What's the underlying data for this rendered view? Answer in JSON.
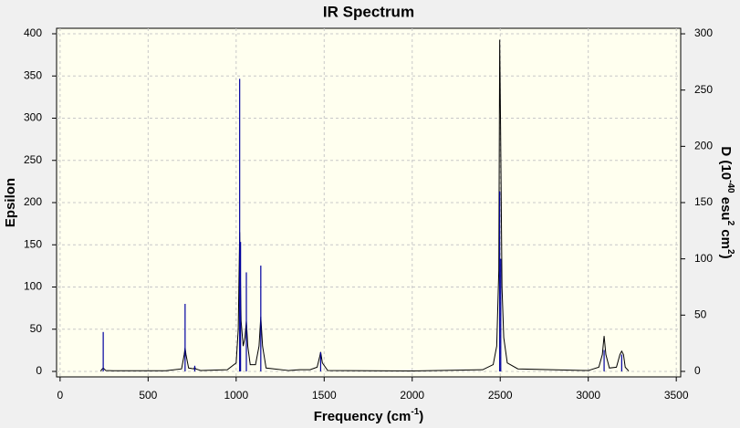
{
  "chart_data": {
    "type": "line",
    "title": "IR Spectrum",
    "xlabel": [
      "Frequency (cm",
      "-1",
      ")"
    ],
    "ylabel": "Epsilon",
    "y2label": [
      "D (10",
      "-40",
      " esu",
      "2",
      " cm",
      "2",
      ")"
    ],
    "xlim": [
      -20,
      3525
    ],
    "xticks": [
      0,
      500,
      1000,
      1500,
      2000,
      2500,
      3000,
      3500
    ],
    "ylim": [
      -6.5,
      406.5
    ],
    "yticks": [
      0,
      50,
      100,
      150,
      200,
      250,
      300,
      350,
      400
    ],
    "y2lim": [
      -4.9,
      304.9
    ],
    "y2ticks": [
      0,
      50,
      100,
      150,
      200,
      250,
      300
    ],
    "grid": true,
    "series": [
      {
        "color": "#000000",
        "style": "line",
        "x": [
          230,
          240,
          245,
          250,
          260,
          300,
          600,
          690,
          705,
          710,
          715,
          730,
          760,
          765,
          770,
          800,
          950,
          1000,
          1012,
          1020,
          1028,
          1040,
          1050,
          1058,
          1066,
          1080,
          1110,
          1130,
          1140,
          1150,
          1170,
          1300,
          1360,
          1420,
          1460,
          1475,
          1480,
          1490,
          1520,
          2000,
          2400,
          2460,
          2480,
          2492,
          2497,
          2502,
          2510,
          2520,
          2540,
          2600,
          3000,
          3060,
          3080,
          3090,
          3100,
          3120,
          3160,
          3180,
          3190,
          3200,
          3210,
          3230
        ],
        "values": [
          0.5,
          3,
          4,
          3,
          1,
          0.8,
          0.8,
          3,
          20,
          28,
          20,
          4,
          3,
          5,
          3,
          1,
          2,
          10,
          50,
          165,
          60,
          30,
          40,
          60,
          30,
          8,
          8,
          30,
          65,
          30,
          4,
          1,
          2,
          2,
          5,
          18,
          23,
          10,
          1,
          0.5,
          2,
          8,
          30,
          120,
          393,
          290,
          100,
          40,
          10,
          3,
          1,
          5,
          20,
          42,
          20,
          4,
          5,
          20,
          24,
          20,
          5,
          0.5
        ]
      },
      {
        "color": "#0000a0",
        "style": "stick",
        "axis": "y2",
        "x": [
          245,
          710,
          765,
          1020,
          1025,
          1058,
          1140,
          1480,
          2497,
          2503,
          3090,
          3190
        ],
        "values": [
          35,
          60,
          5,
          260,
          115,
          88,
          94,
          17,
          160,
          100,
          19,
          15
        ]
      }
    ]
  }
}
